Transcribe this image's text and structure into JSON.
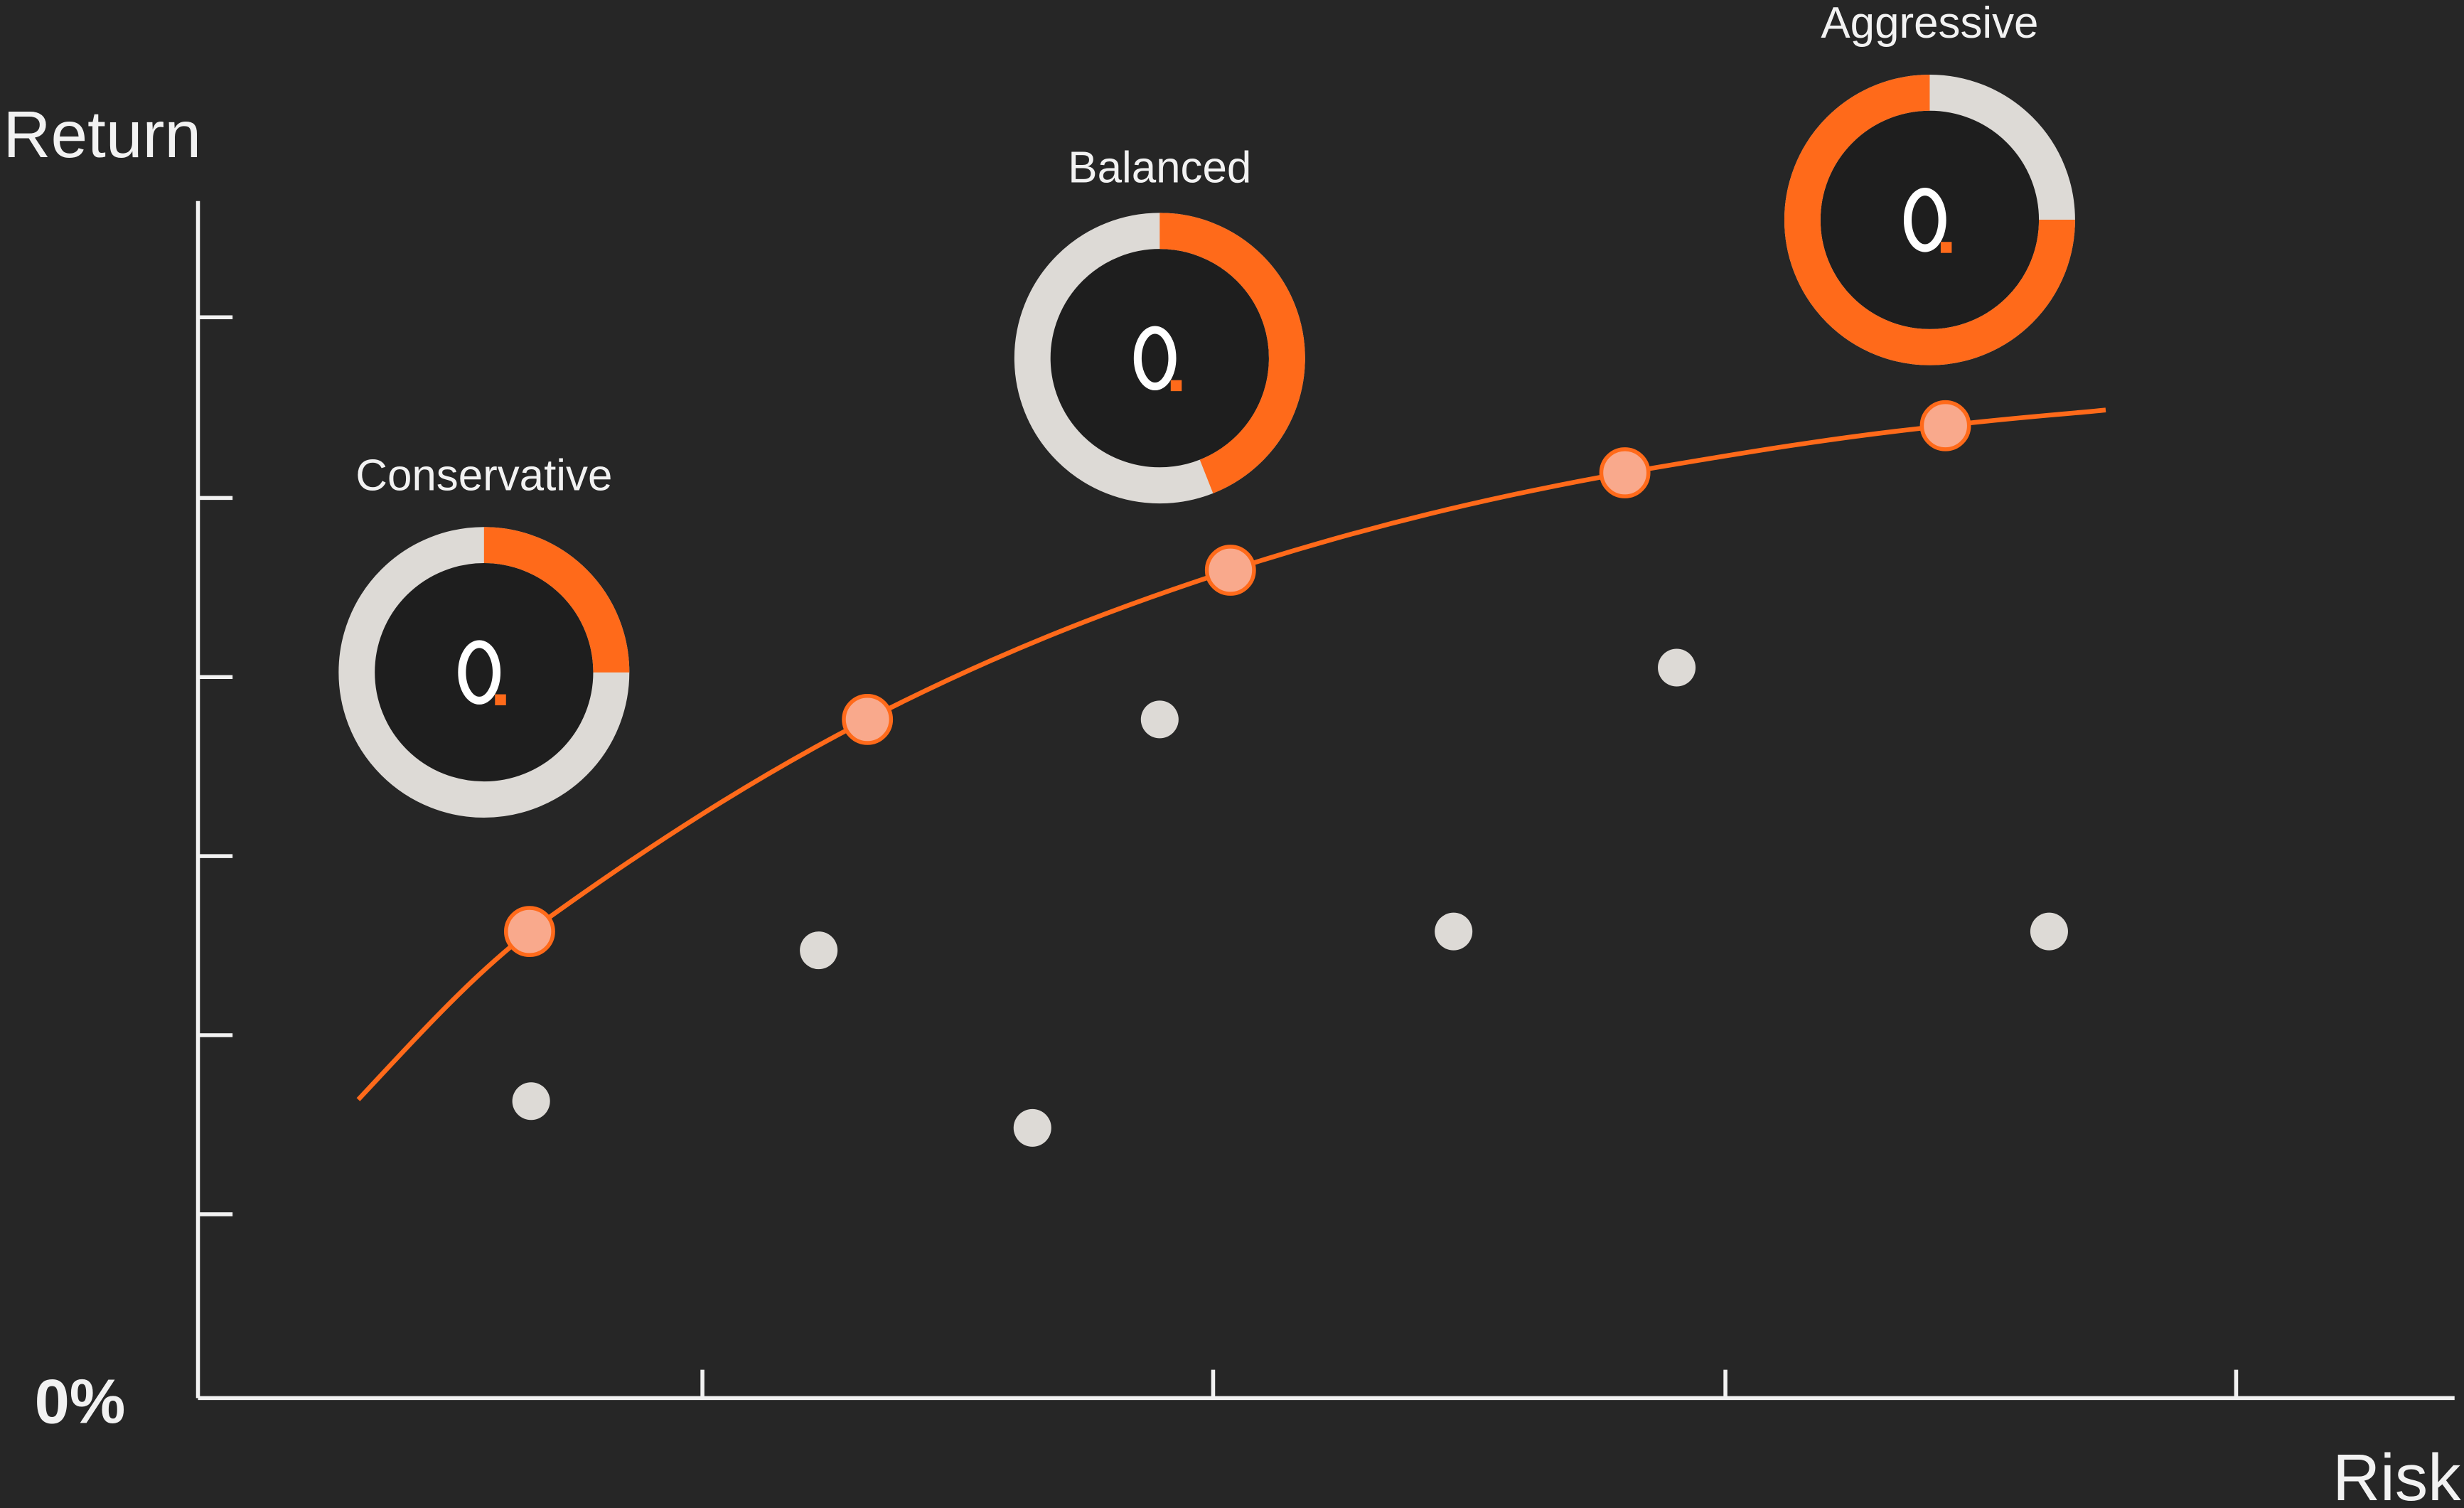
{
  "axis": {
    "y_label": "Return",
    "origin_label": "0%",
    "x_label": "Risk"
  },
  "profiles": [
    {
      "label": "Conservative",
      "share": 25
    },
    {
      "label": "Balanced",
      "share": 44
    },
    {
      "label": "Aggressive",
      "share": 75
    }
  ]
}
